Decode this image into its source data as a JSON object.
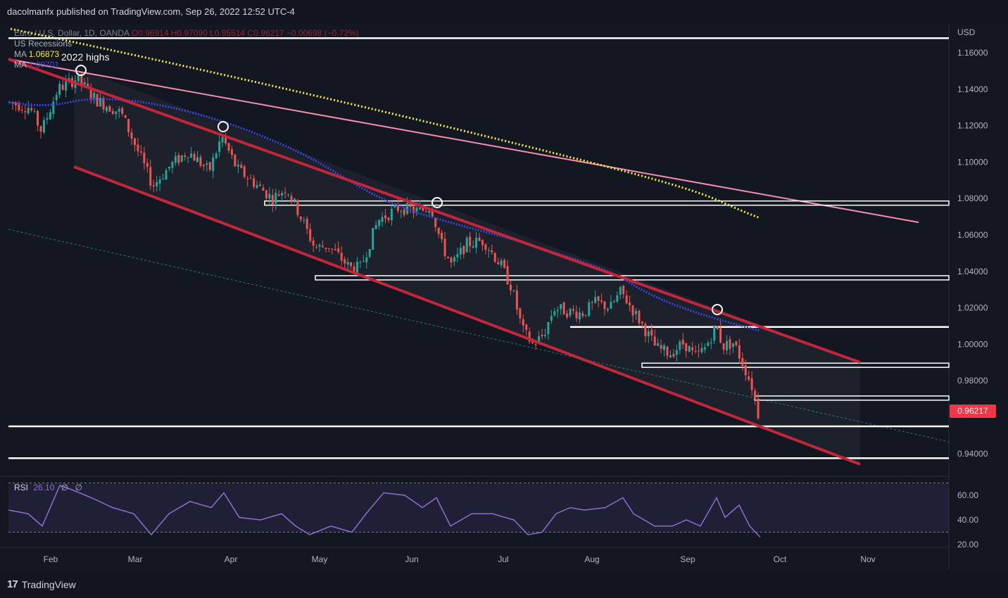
{
  "header": {
    "publisher_line": "dacolmanfx published on TradingView.com, Sep 26, 2022 12:52 UTC-4"
  },
  "legend": {
    "symbol_line": "Euro / U.S. Dollar, 1D, OANDA",
    "ohlc_line": "O0.96914 H0.97090 L0.95514 C0.96217 −0.00698 (−0.72%)",
    "recessions_label": "US Recessions",
    "ma1_label": "MA",
    "ma1_value": "1.06873",
    "ma2_label": "MA",
    "ma2_value": "1.00701"
  },
  "annotation": {
    "text": "2022 highs"
  },
  "last_price": {
    "label": "0.96217"
  },
  "rsi": {
    "label": "RSI",
    "value": "26.10",
    "extra1": "∅",
    "extra2": "∅"
  },
  "footer": {
    "brand": "TradingView"
  },
  "colors": {
    "background": "#131722",
    "up": "#26a69a",
    "down": "#ef5350",
    "channel": "#c2263a",
    "pink_trend": "#f48fb1",
    "ma_yellow": "#f5e93a",
    "ma_blue": "#3b46e0",
    "rsi_line": "#8e6fd0"
  },
  "chart_data": {
    "type": "candlestick",
    "currency": "USD",
    "y_ticks": [
      1.16,
      1.14,
      1.12,
      1.1,
      1.08,
      1.06,
      1.04,
      1.02,
      1.0,
      0.98,
      0.96,
      0.94
    ],
    "y_tick_labels": [
      "1.16000",
      "1.14000",
      "1.12000",
      "1.10000",
      "1.08000",
      "1.06000",
      "1.04000",
      "1.02000",
      "1.00000",
      "0.98000",
      "0.96217",
      "0.94000"
    ],
    "x_months": [
      "Feb",
      "Mar",
      "Apr",
      "May",
      "Jun",
      "Jul",
      "Aug",
      "Sep",
      "Oct",
      "Nov"
    ],
    "last_close": 0.96217,
    "horizontal_levels": [
      1.168,
      1.0775,
      1.0365,
      1.0095,
      0.9885,
      0.9705,
      0.955,
      0.9375
    ],
    "rsi_ticks": [
      "60.00",
      "40.00",
      "20.00"
    ],
    "rsi_last": 26.1,
    "rsi_band": [
      30,
      70
    ]
  }
}
